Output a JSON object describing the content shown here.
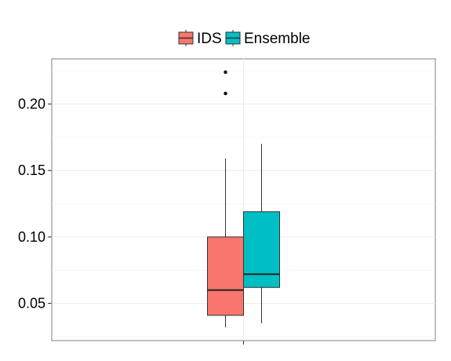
{
  "chart_data": {
    "type": "boxplot",
    "title": "",
    "xlabel": "",
    "ylabel": "",
    "ylim": [
      0.022,
      0.234
    ],
    "y_ticks": [
      0.05,
      0.1,
      0.15,
      0.2
    ],
    "y_tick_labels": [
      "0.05",
      "0.10",
      "0.15",
      "0.20"
    ],
    "grid": true,
    "legend_position": "top",
    "series": [
      {
        "name": "IDS",
        "color": "#F8766D",
        "whisker_low": 0.032,
        "q1": 0.041,
        "median": 0.06,
        "q3": 0.1,
        "whisker_high": 0.159,
        "outliers": [
          0.208,
          0.224
        ]
      },
      {
        "name": "Ensemble",
        "color": "#00BFC4",
        "whisker_low": 0.035,
        "q1": 0.062,
        "median": 0.072,
        "q3": 0.119,
        "whisker_high": 0.17,
        "outliers": []
      }
    ]
  }
}
